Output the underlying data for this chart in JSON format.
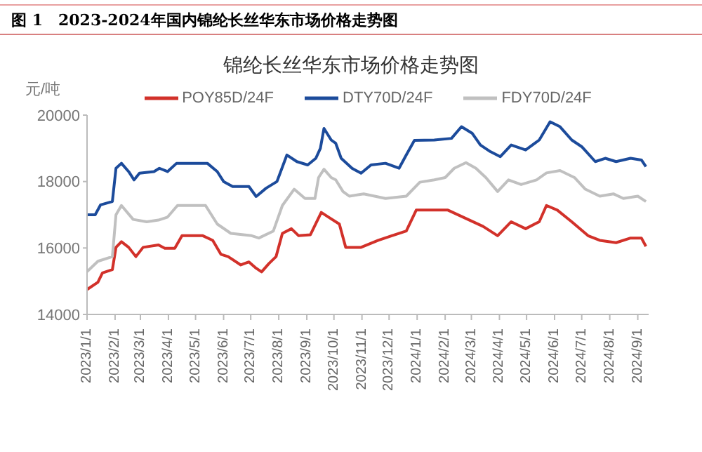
{
  "chart_data": {
    "type": "line",
    "title": "图 1　2023-2024年国内锦纶长丝华东市场价格走势图",
    "subtitle": "锦纶长丝华东市场价格走势图",
    "ylabel": "元/吨",
    "legend": "top",
    "grid": false,
    "marker": "none",
    "line_style": "solid",
    "xlim": [
      "2023-01-01",
      "2024-09-13"
    ],
    "xticks": [
      {
        "value": "2023-01-01",
        "label": "2023/1/1"
      },
      {
        "value": "2023-02-01",
        "label": "2023/2/1"
      },
      {
        "value": "2023-03-01",
        "label": "2023/3/1"
      },
      {
        "value": "2023-04-01",
        "label": "2023/4/1"
      },
      {
        "value": "2023-05-01",
        "label": "2023/5/1"
      },
      {
        "value": "2023-06-01",
        "label": "2023/6/1"
      },
      {
        "value": "2023-07-01",
        "label": "2023/7/1"
      },
      {
        "value": "2023-08-01",
        "label": "2023/8/1"
      },
      {
        "value": "2023-09-01",
        "label": "2023/9/1"
      },
      {
        "value": "2023-10-01",
        "label": "2023/10/1"
      },
      {
        "value": "2023-11-01",
        "label": "2023/11/1"
      },
      {
        "value": "2023-12-01",
        "label": "2023/12/1"
      },
      {
        "value": "2024-01-01",
        "label": "2024/1/1"
      },
      {
        "value": "2024-02-01",
        "label": "2024/2/1"
      },
      {
        "value": "2024-03-01",
        "label": "2024/3/1"
      },
      {
        "value": "2024-04-01",
        "label": "2024/4/1"
      },
      {
        "value": "2024-05-01",
        "label": "2024/5/1"
      },
      {
        "value": "2024-06-01",
        "label": "2024/6/1"
      },
      {
        "value": "2024-07-01",
        "label": "2024/7/1"
      },
      {
        "value": "2024-08-01",
        "label": "2024/8/1"
      },
      {
        "value": "2024-09-01",
        "label": "2024/9/1"
      }
    ],
    "ylim": [
      14000,
      20000
    ],
    "yticks": [
      14000,
      16000,
      18000,
      20000
    ],
    "series": [
      {
        "name": "POY85D/24F",
        "color": "#d2312a",
        "x": [
          "2023-01-01",
          "2023-01-13",
          "2023-01-18",
          "2023-01-29",
          "2023-02-02",
          "2023-02-08",
          "2023-02-16",
          "2023-02-24",
          "2023-03-04",
          "2023-03-21",
          "2023-03-28",
          "2023-04-08",
          "2023-04-16",
          "2023-05-09",
          "2023-05-20",
          "2023-05-29",
          "2023-06-06",
          "2023-06-20",
          "2023-06-29",
          "2023-07-07",
          "2023-07-13",
          "2023-07-21",
          "2023-07-29",
          "2023-08-05",
          "2023-08-15",
          "2023-08-23",
          "2023-09-05",
          "2023-09-17",
          "2023-09-25",
          "2023-10-07",
          "2023-10-14",
          "2023-10-31",
          "2023-11-19",
          "2023-12-04",
          "2023-12-20",
          "2023-12-31",
          "2024-01-12",
          "2024-02-04",
          "2024-03-14",
          "2024-03-30",
          "2024-04-14",
          "2024-04-30",
          "2024-05-15",
          "2024-05-23",
          "2024-06-04",
          "2024-06-20",
          "2024-07-08",
          "2024-07-21",
          "2024-08-08",
          "2024-08-24",
          "2024-09-05",
          "2024-09-10"
        ],
        "values": [
          14750,
          14970,
          15250,
          15350,
          16020,
          16190,
          16020,
          15740,
          16020,
          16090,
          15990,
          15990,
          16370,
          16370,
          16230,
          15810,
          15740,
          15490,
          15580,
          15390,
          15280,
          15530,
          15740,
          16440,
          16580,
          16370,
          16400,
          17070,
          16930,
          16720,
          16020,
          16020,
          16230,
          16370,
          16510,
          17140,
          17140,
          17140,
          16650,
          16370,
          16790,
          16580,
          16790,
          17280,
          17140,
          16790,
          16370,
          16230,
          16160,
          16300,
          16300,
          16050
        ]
      },
      {
        "name": "DTY70D/24F",
        "color": "#1c4b9b",
        "x": [
          "2023-01-01",
          "2023-01-10",
          "2023-01-16",
          "2023-01-29",
          "2023-02-02",
          "2023-02-08",
          "2023-02-16",
          "2023-02-22",
          "2023-02-28",
          "2023-03-16",
          "2023-03-22",
          "2023-03-31",
          "2023-04-10",
          "2023-05-14",
          "2023-05-25",
          "2023-06-01",
          "2023-06-11",
          "2023-06-29",
          "2023-07-07",
          "2023-07-18",
          "2023-07-30",
          "2023-08-10",
          "2023-08-21",
          "2023-09-02",
          "2023-09-11",
          "2023-09-16",
          "2023-09-20",
          "2023-09-28",
          "2023-10-03",
          "2023-10-09",
          "2023-10-21",
          "2023-10-31",
          "2023-11-11",
          "2023-11-27",
          "2023-12-12",
          "2023-12-20",
          "2023-12-29",
          "2024-01-20",
          "2024-02-08",
          "2024-02-19",
          "2024-03-02",
          "2024-03-11",
          "2024-03-22",
          "2024-04-02",
          "2024-04-14",
          "2024-04-30",
          "2024-05-15",
          "2024-05-27",
          "2024-06-07",
          "2024-06-20",
          "2024-07-01",
          "2024-07-16",
          "2024-07-27",
          "2024-08-08",
          "2024-08-24",
          "2024-09-05",
          "2024-09-10"
        ],
        "values": [
          17000,
          17000,
          17300,
          17400,
          18400,
          18550,
          18300,
          18050,
          18250,
          18300,
          18400,
          18300,
          18550,
          18550,
          18300,
          18000,
          17850,
          17850,
          17550,
          17800,
          18000,
          18800,
          18600,
          18500,
          18700,
          19000,
          19600,
          19250,
          19150,
          18700,
          18400,
          18250,
          18500,
          18550,
          18400,
          18800,
          19240,
          19250,
          19300,
          19650,
          19450,
          19100,
          18900,
          18750,
          19100,
          18950,
          19250,
          19800,
          19650,
          19250,
          19050,
          18600,
          18700,
          18600,
          18700,
          18650,
          18450
        ]
      },
      {
        "name": "FDY70D/24F",
        "color": "#c0c0c0",
        "x": [
          "2023-01-01",
          "2023-01-13",
          "2023-01-29",
          "2023-02-02",
          "2023-02-08",
          "2023-02-21",
          "2023-03-08",
          "2023-03-21",
          "2023-03-31",
          "2023-04-11",
          "2023-05-12",
          "2023-05-25",
          "2023-06-09",
          "2023-07-02",
          "2023-07-10",
          "2023-07-26",
          "2023-08-05",
          "2023-08-18",
          "2023-08-30",
          "2023-09-10",
          "2023-09-14",
          "2023-09-20",
          "2023-09-28",
          "2023-10-03",
          "2023-10-11",
          "2023-10-18",
          "2023-11-03",
          "2023-11-27",
          "2023-12-20",
          "2024-01-04",
          "2024-01-20",
          "2024-02-01",
          "2024-02-11",
          "2024-02-24",
          "2024-03-06",
          "2024-03-17",
          "2024-03-30",
          "2024-04-11",
          "2024-04-25",
          "2024-05-12",
          "2024-05-23",
          "2024-06-07",
          "2024-06-23",
          "2024-07-05",
          "2024-07-21",
          "2024-08-05",
          "2024-08-16",
          "2024-09-01",
          "2024-09-10"
        ],
        "values": [
          15290,
          15600,
          15740,
          17000,
          17280,
          16860,
          16790,
          16840,
          16930,
          17280,
          17280,
          16720,
          16440,
          16370,
          16300,
          16510,
          17280,
          17770,
          17490,
          17490,
          18120,
          18370,
          18120,
          18050,
          17700,
          17560,
          17630,
          17490,
          17560,
          17980,
          18050,
          18120,
          18400,
          18570,
          18400,
          18120,
          17700,
          18050,
          17910,
          18050,
          18260,
          18330,
          18120,
          17770,
          17560,
          17630,
          17490,
          17560,
          17400
        ]
      }
    ]
  }
}
